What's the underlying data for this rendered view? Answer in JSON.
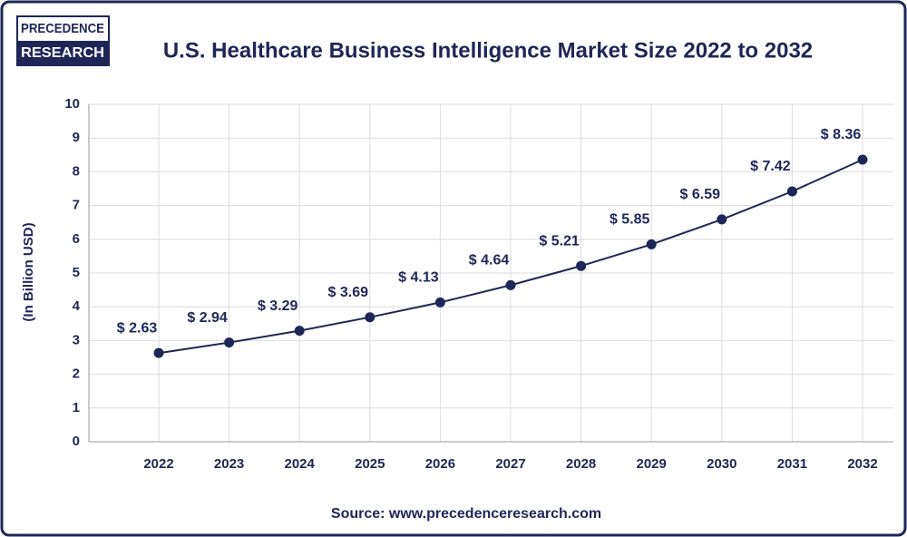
{
  "logo": {
    "line1": "PRECEDENCE",
    "line2": "RESEARCH"
  },
  "source": "Source: www.precedenceresearch.com",
  "chart_data": {
    "type": "line",
    "title": "U.S. Healthcare Business Intelligence Market Size 2022 to 2032",
    "y_label": "(In Billion USD)",
    "categories": [
      "2022",
      "2023",
      "2024",
      "2025",
      "2026",
      "2027",
      "2028",
      "2029",
      "2030",
      "2031",
      "2032"
    ],
    "values": [
      2.63,
      2.94,
      3.29,
      3.69,
      4.13,
      4.64,
      5.21,
      5.85,
      6.59,
      7.42,
      8.36
    ],
    "value_labels": [
      "$ 2.63",
      "$ 2.94",
      "$ 3.29",
      "$ 3.69",
      "$ 4.13",
      "$ 4.64",
      "$ 5.21",
      "$ 5.85",
      "$ 6.59",
      "$ 7.42",
      "$ 8.36"
    ],
    "color": "#1e2657",
    "ylim": [
      0,
      10
    ],
    "yticks": [
      0,
      1,
      2,
      3,
      4,
      5,
      6,
      7,
      8,
      9,
      10
    ],
    "grid": true
  }
}
